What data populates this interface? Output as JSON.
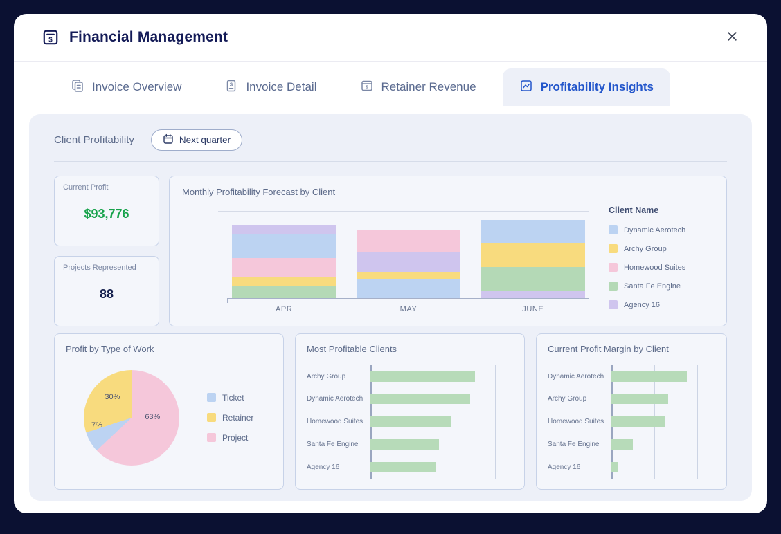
{
  "window": {
    "title": "Financial Management"
  },
  "tabs": [
    {
      "label": "Invoice Overview"
    },
    {
      "label": "Invoice Detail"
    },
    {
      "label": "Retainer Revenue"
    },
    {
      "label": "Profitability Insights"
    }
  ],
  "panel": {
    "section_label": "Client Profitability",
    "quarter_button_label": "Next quarter"
  },
  "stats": [
    {
      "label": "Current Profit",
      "value": "$93,776"
    },
    {
      "label": "Projects Represented",
      "value": "88"
    }
  ],
  "chart_data": [
    {
      "type": "bar",
      "stacked": true,
      "title": "Monthly Profitability Forecast by Client",
      "legend_title": "Client Name",
      "legend_position": "right",
      "categories": [
        "APR",
        "MAY",
        "JUNE"
      ],
      "ylim": [
        0,
        100
      ],
      "grid": true,
      "clients": [
        {
          "name": "Dynamic Aerotech",
          "color": "#bcd3f2"
        },
        {
          "name": "Archy Group",
          "color": "#f8db7e"
        },
        {
          "name": "Homewood Suites",
          "color": "#f5c7da"
        },
        {
          "name": "Santa Fe Engine",
          "color": "#b4d9b6"
        },
        {
          "name": "Agency 16",
          "color": "#cfc5ee"
        }
      ],
      "bars": [
        {
          "category": "APR",
          "segments_bottom_to_top": [
            {
              "client": "Santa Fe Engine",
              "value": 14
            },
            {
              "client": "Archy Group",
              "value": 11
            },
            {
              "client": "Homewood Suites",
              "value": 21
            },
            {
              "client": "Dynamic Aerotech",
              "value": 28
            },
            {
              "client": "Agency 16",
              "value": 9
            }
          ]
        },
        {
          "category": "MAY",
          "segments_bottom_to_top": [
            {
              "client": "Dynamic Aerotech",
              "value": 22
            },
            {
              "client": "Archy Group",
              "value": 8
            },
            {
              "client": "Agency 16",
              "value": 23
            },
            {
              "client": "Homewood Suites",
              "value": 25
            }
          ]
        },
        {
          "category": "JUNE",
          "segments_bottom_to_top": [
            {
              "client": "Agency 16",
              "value": 8
            },
            {
              "client": "Santa Fe Engine",
              "value": 28
            },
            {
              "client": "Archy Group",
              "value": 27
            },
            {
              "client": "Dynamic Aerotech",
              "value": 27
            }
          ]
        }
      ]
    },
    {
      "type": "pie",
      "title": "Profit by Type of Work",
      "slices": [
        {
          "label": "Project",
          "value": 63,
          "pct_label": "63%",
          "color": "#f5c7da"
        },
        {
          "label": "Ticket",
          "value": 7,
          "pct_label": "7%",
          "color": "#bcd3f2"
        },
        {
          "label": "Retainer",
          "value": 30,
          "pct_label": "30%",
          "color": "#f8db7e"
        }
      ],
      "legend_order": [
        "Ticket",
        "Retainer",
        "Project"
      ],
      "legend_position": "right"
    },
    {
      "type": "bar",
      "orientation": "horizontal",
      "title": "Most Profitable Clients",
      "categories": [
        "Archy Group",
        "Dynamic Aerotech",
        "Homewood Suites",
        "Santa Fe Engine",
        "Agency 16"
      ],
      "values": [
        84,
        80,
        65,
        55,
        52
      ],
      "xlim": [
        0,
        100
      ],
      "bar_color": "#b7dbb9",
      "grid": true
    },
    {
      "type": "bar",
      "orientation": "horizontal",
      "title": "Current Profit Margin by Client",
      "categories": [
        "Dynamic Aerotech",
        "Archy Group",
        "Homewood Suites",
        "Santa Fe Engine",
        "Agency 16"
      ],
      "values": [
        88,
        66,
        62,
        25,
        8
      ],
      "xlim": [
        0,
        100
      ],
      "bar_color": "#b7dbb9",
      "grid": true
    }
  ]
}
